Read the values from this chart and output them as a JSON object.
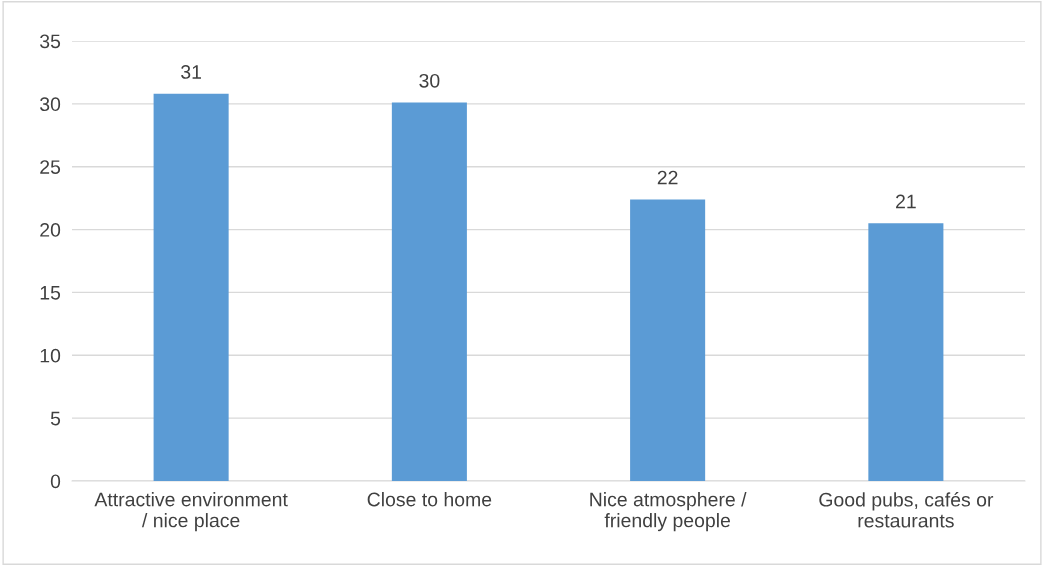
{
  "chart_data": {
    "type": "bar",
    "categories": [
      "Attractive environment\n/ nice place",
      "Close to home",
      "Nice atmosphere /\nfriendly people",
      "Good pubs, cafés or\nrestaurants"
    ],
    "values": [
      30.8,
      30.1,
      22.4,
      20.5
    ],
    "value_labels": [
      "31",
      "30",
      "22",
      "21"
    ],
    "color": "#5b9bd5",
    "ylim": [
      0,
      35
    ],
    "yticks": [
      0,
      5,
      10,
      15,
      20,
      25,
      30,
      35
    ],
    "grid": "y",
    "legend": false
  }
}
